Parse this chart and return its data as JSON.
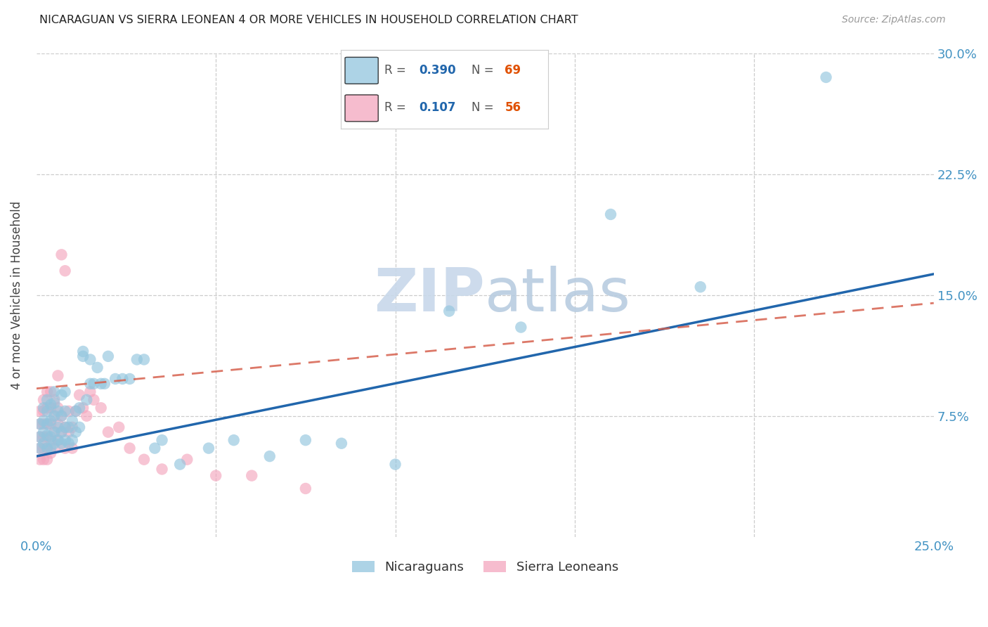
{
  "title": "NICARAGUAN VS SIERRA LEONEAN 4 OR MORE VEHICLES IN HOUSEHOLD CORRELATION CHART",
  "source": "Source: ZipAtlas.com",
  "ylabel": "4 or more Vehicles in Household",
  "xlim": [
    0.0,
    0.25
  ],
  "ylim": [
    0.0,
    0.3
  ],
  "blue_color": "#92c5de",
  "pink_color": "#f4a6be",
  "blue_line_color": "#2166ac",
  "pink_line_color": "#d6604d",
  "axis_color": "#4393c3",
  "ytick_vals": [
    0.0,
    0.075,
    0.15,
    0.225,
    0.3
  ],
  "xtick_vals": [
    0.0,
    0.05,
    0.1,
    0.15,
    0.2,
    0.25
  ],
  "nic_x": [
    0.001,
    0.001,
    0.001,
    0.002,
    0.002,
    0.002,
    0.002,
    0.003,
    0.003,
    0.003,
    0.003,
    0.003,
    0.004,
    0.004,
    0.004,
    0.004,
    0.005,
    0.005,
    0.005,
    0.005,
    0.005,
    0.006,
    0.006,
    0.006,
    0.007,
    0.007,
    0.007,
    0.007,
    0.008,
    0.008,
    0.008,
    0.008,
    0.009,
    0.009,
    0.01,
    0.01,
    0.011,
    0.011,
    0.012,
    0.012,
    0.013,
    0.013,
    0.014,
    0.015,
    0.015,
    0.016,
    0.017,
    0.018,
    0.019,
    0.02,
    0.022,
    0.024,
    0.026,
    0.028,
    0.03,
    0.033,
    0.035,
    0.04,
    0.048,
    0.055,
    0.065,
    0.075,
    0.085,
    0.1,
    0.115,
    0.135,
    0.16,
    0.185,
    0.22
  ],
  "nic_y": [
    0.055,
    0.062,
    0.07,
    0.058,
    0.065,
    0.072,
    0.08,
    0.055,
    0.063,
    0.07,
    0.078,
    0.085,
    0.055,
    0.062,
    0.072,
    0.082,
    0.058,
    0.065,
    0.075,
    0.083,
    0.09,
    0.06,
    0.068,
    0.078,
    0.058,
    0.065,
    0.075,
    0.088,
    0.06,
    0.068,
    0.078,
    0.09,
    0.058,
    0.068,
    0.06,
    0.072,
    0.065,
    0.078,
    0.068,
    0.08,
    0.112,
    0.115,
    0.085,
    0.095,
    0.11,
    0.095,
    0.105,
    0.095,
    0.095,
    0.112,
    0.098,
    0.098,
    0.098,
    0.11,
    0.11,
    0.055,
    0.06,
    0.045,
    0.055,
    0.06,
    0.05,
    0.06,
    0.058,
    0.045,
    0.14,
    0.13,
    0.2,
    0.155,
    0.285
  ],
  "sle_x": [
    0.001,
    0.001,
    0.001,
    0.001,
    0.001,
    0.002,
    0.002,
    0.002,
    0.002,
    0.002,
    0.002,
    0.003,
    0.003,
    0.003,
    0.003,
    0.003,
    0.003,
    0.004,
    0.004,
    0.004,
    0.004,
    0.004,
    0.005,
    0.005,
    0.005,
    0.005,
    0.006,
    0.006,
    0.006,
    0.006,
    0.007,
    0.007,
    0.007,
    0.008,
    0.008,
    0.008,
    0.009,
    0.009,
    0.01,
    0.01,
    0.011,
    0.012,
    0.013,
    0.014,
    0.015,
    0.016,
    0.018,
    0.02,
    0.023,
    0.026,
    0.03,
    0.035,
    0.042,
    0.05,
    0.06,
    0.075
  ],
  "sle_y": [
    0.048,
    0.055,
    0.062,
    0.07,
    0.078,
    0.048,
    0.055,
    0.062,
    0.07,
    0.078,
    0.085,
    0.048,
    0.055,
    0.062,
    0.07,
    0.08,
    0.09,
    0.052,
    0.06,
    0.07,
    0.08,
    0.09,
    0.055,
    0.065,
    0.075,
    0.085,
    0.06,
    0.07,
    0.08,
    0.1,
    0.065,
    0.075,
    0.175,
    0.055,
    0.068,
    0.165,
    0.065,
    0.078,
    0.055,
    0.068,
    0.078,
    0.088,
    0.08,
    0.075,
    0.09,
    0.085,
    0.08,
    0.065,
    0.068,
    0.055,
    0.048,
    0.042,
    0.048,
    0.038,
    0.038,
    0.03
  ],
  "nic_line_x0": 0.0,
  "nic_line_y0": 0.05,
  "nic_line_x1": 0.25,
  "nic_line_y1": 0.163,
  "sle_line_x0": 0.0,
  "sle_line_y0": 0.092,
  "sle_line_x1": 0.25,
  "sle_line_y1": 0.145
}
